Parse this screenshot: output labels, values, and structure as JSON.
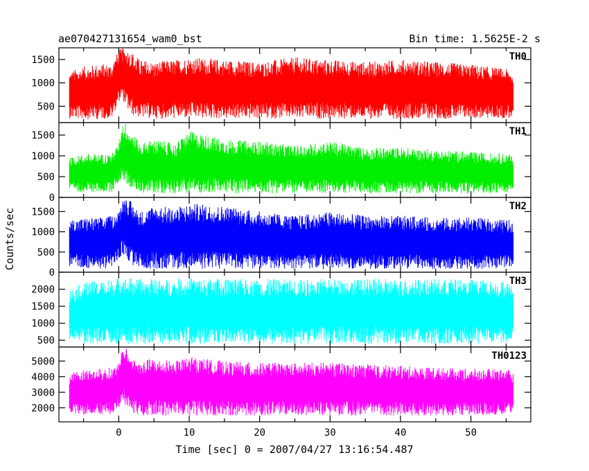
{
  "header": {
    "left_title": "ae070427131654_wam0_bst",
    "right_title": "Bin time: 1.5625E-2 s"
  },
  "chart_data": {
    "type": "line",
    "xlabel": "Time [sec] 0 = 2007/04/27 13:16:54.487",
    "ylabel": "Counts/sec",
    "xlim": [
      -8.5,
      58.5
    ],
    "x_ticks": [
      0,
      10,
      20,
      30,
      40,
      50
    ],
    "x_tick_labels": [
      "0",
      "10",
      "20",
      "30",
      "40",
      "50"
    ],
    "panels": [
      {
        "name": "TH0",
        "color": "#ff0000",
        "ylim": [
          150,
          1750
        ],
        "y_ticks": [
          500,
          1000,
          1500
        ],
        "x": [
          -7.0,
          -5.0,
          -3.0,
          -1.0,
          0.0,
          0.5,
          1.0,
          1.5,
          2.0,
          3.0,
          5.0,
          8.0,
          10.0,
          15.0,
          20.0,
          25.0,
          30.0,
          35.0,
          40.0,
          45.0,
          50.0,
          55.0,
          56.0
        ],
        "upper": [
          1250,
          1350,
          1400,
          1420,
          1700,
          1750,
          1750,
          1700,
          1650,
          1500,
          1450,
          1500,
          1550,
          1500,
          1450,
          1550,
          1500,
          1450,
          1500,
          1450,
          1400,
          1300,
          1250
        ],
        "lower": [
          230,
          220,
          220,
          230,
          600,
          650,
          500,
          350,
          300,
          250,
          230,
          230,
          240,
          230,
          230,
          230,
          230,
          230,
          230,
          230,
          230,
          240,
          250
        ]
      },
      {
        "name": "TH1",
        "color": "#00ee00",
        "ylim": [
          0,
          1800
        ],
        "y_ticks": [
          0,
          500,
          1000,
          1500
        ],
        "x": [
          -7.0,
          -5.0,
          -3.0,
          -1.0,
          0.0,
          0.5,
          1.0,
          1.5,
          2.0,
          3.0,
          5.0,
          8.0,
          10.0,
          15.0,
          20.0,
          25.0,
          30.0,
          35.0,
          40.0,
          45.0,
          50.0,
          55.0,
          56.0
        ],
        "upper": [
          950,
          1050,
          1050,
          1050,
          1300,
          1800,
          1800,
          1650,
          1550,
          1300,
          1400,
          1300,
          1600,
          1400,
          1350,
          1250,
          1350,
          1200,
          1200,
          1150,
          1100,
          1050,
          1000
        ],
        "lower": [
          150,
          120,
          120,
          130,
          350,
          450,
          300,
          250,
          180,
          120,
          100,
          100,
          110,
          100,
          100,
          100,
          100,
          100,
          100,
          100,
          100,
          110,
          120
        ]
      },
      {
        "name": "TH2",
        "color": "#0000ff",
        "ylim": [
          0,
          1850
        ],
        "y_ticks": [
          0,
          500,
          1000,
          1500
        ],
        "x": [
          -7.0,
          -5.0,
          -3.0,
          -1.0,
          0.0,
          0.5,
          1.0,
          1.5,
          2.0,
          3.0,
          5.0,
          8.0,
          10.0,
          15.0,
          20.0,
          25.0,
          30.0,
          35.0,
          40.0,
          45.0,
          50.0,
          55.0,
          56.0
        ],
        "upper": [
          1300,
          1350,
          1350,
          1400,
          1500,
          1850,
          1850,
          1800,
          1700,
          1500,
          1650,
          1600,
          1700,
          1650,
          1500,
          1400,
          1500,
          1400,
          1400,
          1350,
          1350,
          1300,
          1300
        ],
        "lower": [
          150,
          100,
          80,
          100,
          300,
          450,
          350,
          250,
          150,
          100,
          80,
          80,
          80,
          80,
          80,
          80,
          80,
          80,
          80,
          80,
          80,
          100,
          150
        ]
      },
      {
        "name": "TH3",
        "color": "#00ffff",
        "ylim": [
          300,
          2500
        ],
        "y_ticks": [
          500,
          1000,
          1500,
          2000
        ],
        "x": [
          -7.0,
          -5.0,
          -3.0,
          -1.0,
          0.0,
          0.5,
          1.0,
          1.5,
          2.0,
          3.0,
          5.0,
          8.0,
          10.0,
          15.0,
          20.0,
          25.0,
          30.0,
          35.0,
          40.0,
          45.0,
          50.0,
          55.0,
          56.0
        ],
        "upper": [
          2000,
          2200,
          2250,
          2300,
          2350,
          2400,
          2350,
          2350,
          2300,
          2300,
          2300,
          2300,
          2350,
          2300,
          2300,
          2300,
          2300,
          2300,
          2300,
          2300,
          2300,
          2250,
          2100
        ],
        "lower": [
          500,
          400,
          380,
          380,
          400,
          500,
          400,
          380,
          380,
          380,
          380,
          380,
          380,
          380,
          380,
          380,
          380,
          380,
          380,
          380,
          380,
          400,
          450
        ]
      },
      {
        "name": "TH0123",
        "color": "#ff00ff",
        "ylim": [
          1100,
          5900
        ],
        "y_ticks": [
          2000,
          3000,
          4000,
          5000
        ],
        "x": [
          -7.0,
          -5.0,
          -3.0,
          -1.0,
          0.0,
          0.5,
          1.0,
          1.5,
          2.0,
          3.0,
          5.0,
          8.0,
          10.0,
          15.0,
          20.0,
          25.0,
          30.0,
          35.0,
          40.0,
          45.0,
          50.0,
          55.0,
          56.0
        ],
        "upper": [
          4200,
          4500,
          4500,
          4600,
          4800,
          5900,
          5900,
          5500,
          5200,
          5000,
          5200,
          5000,
          5300,
          5000,
          4900,
          4900,
          4900,
          4800,
          4700,
          4600,
          4500,
          4500,
          4300
        ],
        "lower": [
          1700,
          1500,
          1500,
          1550,
          2000,
          2500,
          2000,
          1700,
          1600,
          1500,
          1500,
          1500,
          1500,
          1500,
          1500,
          1500,
          1500,
          1500,
          1500,
          1500,
          1500,
          1600,
          1700
        ]
      }
    ]
  }
}
